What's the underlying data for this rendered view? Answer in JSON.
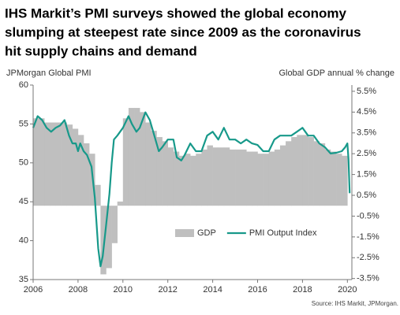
{
  "chart_data": {
    "type": "line",
    "title_lines": [
      "IHS Markit’s PMI surveys showed the global economy",
      "slumping at steepest rate since 2009 as the coronavirus",
      "hit supply chains and demand"
    ],
    "y_label": "JPMorgan Global PMI",
    "y2_label": "Global GDP annual % change",
    "source": "Source: IHS Markit, JPMorgan.",
    "legend_position": "lower center",
    "xlim": [
      2006,
      2020.2
    ],
    "xticks": [
      2006,
      2008,
      2010,
      2012,
      2014,
      2016,
      2018,
      2020
    ],
    "ylim": [
      35,
      60
    ],
    "yticks": [
      35,
      40,
      45,
      50,
      55,
      60
    ],
    "y2lim": [
      -3.55,
      5.8
    ],
    "y2ticks": [
      {
        "value": 5.5,
        "label": "5.5%"
      },
      {
        "value": 4.5,
        "label": "4.5%"
      },
      {
        "value": 3.5,
        "label": "3.5%"
      },
      {
        "value": 2.5,
        "label": "2.5%"
      },
      {
        "value": 1.5,
        "label": "1.5%"
      },
      {
        "value": 0.5,
        "label": "0.5%"
      },
      {
        "value": -0.5,
        "label": "-0.5%"
      },
      {
        "value": -1.5,
        "label": "-1.5%"
      },
      {
        "value": -2.5,
        "label": "-2.5%"
      },
      {
        "value": -3.5,
        "label": "-3.5%"
      }
    ],
    "series": [
      {
        "name": "GDP",
        "kind": "step-area",
        "axis": "y2",
        "color": "#bfbfbf",
        "x": [
          2006,
          2006.25,
          2006.5,
          2006.75,
          2007,
          2007.25,
          2007.5,
          2007.75,
          2008,
          2008.25,
          2008.5,
          2008.75,
          2009,
          2009.25,
          2009.5,
          2009.75,
          2010,
          2010.25,
          2010.5,
          2010.75,
          2011,
          2011.25,
          2011.5,
          2011.75,
          2012,
          2012.25,
          2012.5,
          2012.75,
          2013,
          2013.25,
          2013.5,
          2013.75,
          2014,
          2014.25,
          2014.5,
          2014.75,
          2015,
          2015.25,
          2015.5,
          2015.75,
          2016,
          2016.25,
          2016.5,
          2016.75,
          2017,
          2017.25,
          2017.5,
          2017.75,
          2018,
          2018.25,
          2018.5,
          2018.75,
          2019,
          2019.25,
          2019.5,
          2019.75
        ],
        "values": [
          4.2,
          4.2,
          4.0,
          4.0,
          4.0,
          4.0,
          3.9,
          3.7,
          3.4,
          3.0,
          2.5,
          1.0,
          -3.3,
          -3.0,
          -1.8,
          0.2,
          4.2,
          4.7,
          4.7,
          4.5,
          4.0,
          3.6,
          3.3,
          3.1,
          2.8,
          2.6,
          2.4,
          2.5,
          2.4,
          2.5,
          2.7,
          2.9,
          2.8,
          2.8,
          2.8,
          2.7,
          2.7,
          2.7,
          2.6,
          2.6,
          2.5,
          2.5,
          2.6,
          2.7,
          2.9,
          3.1,
          3.3,
          3.4,
          3.4,
          3.3,
          3.1,
          3.0,
          2.7,
          2.6,
          2.5,
          2.4
        ]
      },
      {
        "name": "PMI Output Index",
        "kind": "line",
        "color": "#17998a",
        "x": [
          2006,
          2006.2,
          2006.4,
          2006.6,
          2006.8,
          2007,
          2007.2,
          2007.4,
          2007.6,
          2007.75,
          2007.9,
          2008,
          2008.1,
          2008.25,
          2008.4,
          2008.6,
          2008.75,
          2008.9,
          2009,
          2009.1,
          2009.25,
          2009.4,
          2009.5,
          2009.6,
          2009.75,
          2010,
          2010.25,
          2010.4,
          2010.6,
          2010.75,
          2011,
          2011.2,
          2011.4,
          2011.6,
          2011.75,
          2012,
          2012.25,
          2012.4,
          2012.6,
          2012.75,
          2013,
          2013.25,
          2013.5,
          2013.75,
          2014,
          2014.25,
          2014.5,
          2014.75,
          2015,
          2015.25,
          2015.5,
          2015.75,
          2016,
          2016.25,
          2016.5,
          2016.75,
          2017,
          2017.25,
          2017.5,
          2017.75,
          2018,
          2018.25,
          2018.5,
          2018.75,
          2019,
          2019.25,
          2019.5,
          2019.75,
          2019.9,
          2020,
          2020.05,
          2020.1
        ],
        "values": [
          54.5,
          56,
          55.5,
          54.5,
          54,
          54.5,
          54.8,
          55.5,
          53.5,
          52.5,
          52.5,
          51.5,
          52.5,
          51.5,
          51,
          49.5,
          45.5,
          39,
          36.7,
          38,
          42,
          46,
          50,
          53,
          53.5,
          54.5,
          56,
          55,
          54,
          54.5,
          56.5,
          55.5,
          53.5,
          51.5,
          52,
          53,
          53,
          50.7,
          50.3,
          51,
          52.5,
          51.5,
          51.5,
          53.5,
          54,
          53,
          54.5,
          53,
          53,
          52.5,
          53,
          52.5,
          52.3,
          51.5,
          51.5,
          53,
          53.5,
          53.5,
          53.5,
          54,
          54.5,
          53.5,
          53.5,
          52.5,
          52,
          51.2,
          51.3,
          51.5,
          52,
          52.5,
          50.5,
          46.1
        ]
      }
    ]
  }
}
